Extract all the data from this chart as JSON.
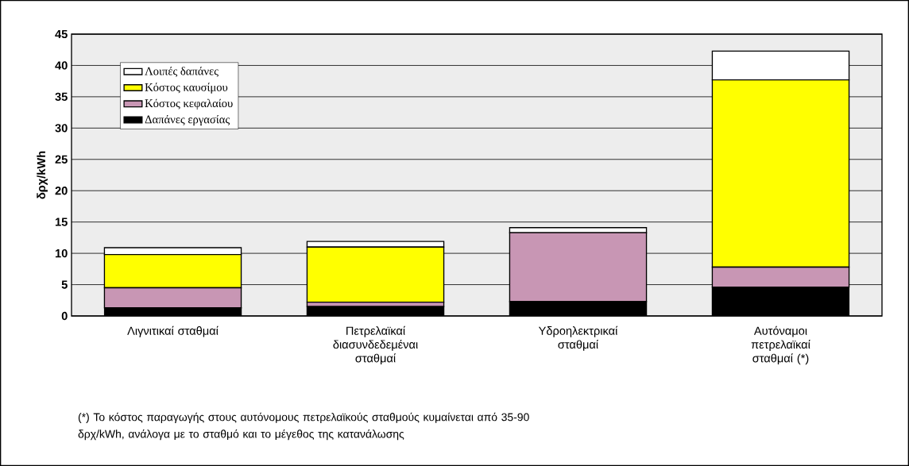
{
  "chart_data": {
    "type": "bar",
    "stacked": true,
    "ylabel": "δρχ/kWh",
    "categories": [
      "Λιγνιτικαί σταθμαί",
      "Πετρελαϊκαί διασυνδεδεμέναι σταθμαί",
      "Υδροηλεκτρικαί σταθμαί",
      "Αυτόναμοι πετρελαϊκαί σταθμαί (*)"
    ],
    "series": [
      {
        "name": "Δαπάνες εργασίας",
        "color": "#000000",
        "values": [
          1.3,
          1.5,
          2.3,
          4.6
        ]
      },
      {
        "name": "Κόστος κεφαλαίου",
        "color": "#c896b4",
        "values": [
          3.2,
          0.7,
          11.0,
          3.2
        ]
      },
      {
        "name": "Κόστος καυσίμου",
        "color": "#ffff00",
        "values": [
          5.3,
          8.8,
          0,
          29.9
        ]
      },
      {
        "name": "Λοιπές δαπάνες",
        "color": "#ffffff",
        "values": [
          1.1,
          0.9,
          0.8,
          4.6
        ]
      }
    ],
    "ylim": [
      0,
      45
    ],
    "yticks": [
      0,
      5,
      10,
      15,
      20,
      25,
      30,
      35,
      40,
      45
    ],
    "grid": "y",
    "legend": "top left",
    "annotations": [
      "(*) Το κόστος παραγωγής στους αυτόνομους πετρελαϊκούς σταθμούς κυμαίνεται από 35-90 δρχ/kWh, ανάλογα με το σταθμό και το μέγεθος της κατανάλωσης"
    ]
  }
}
